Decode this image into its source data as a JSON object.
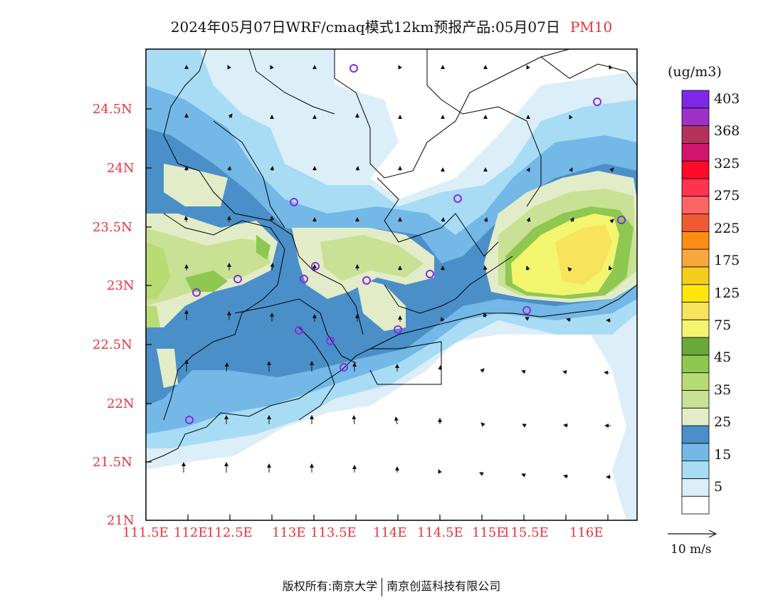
{
  "title": {
    "text": "2024年05月07日WRF/cmaq模式12km预报产品:05月07日",
    "pollutant": "PM10"
  },
  "axes": {
    "lat_labels": [
      "24.5N",
      "24N",
      "23.5N",
      "23N",
      "22.5N",
      "22N",
      "21.5N",
      "21N"
    ],
    "lon_labels": [
      "111.5E",
      "112E",
      "112.5E",
      "113E",
      "113.5E",
      "114E",
      "114.5E",
      "115E",
      "115.5E",
      "116E"
    ],
    "label_color": "#e8323c"
  },
  "colorbar": {
    "unit": "(ug/m3)",
    "colors": [
      "#ffffff",
      "#dceef8",
      "#a8dcf5",
      "#73b8e6",
      "#4a8fc8",
      "#e3ecc8",
      "#c9e194",
      "#b8dc74",
      "#8ec850",
      "#6aa83c",
      "#f3f56e",
      "#f7e35c",
      "#ffe60a",
      "#f5ce1c",
      "#f7a83c",
      "#ff8c14",
      "#ef5a32",
      "#ff6464",
      "#ff3250",
      "#ff0a28",
      "#d2146e",
      "#b4325a",
      "#9e32c8",
      "#7e28e6"
    ],
    "labels": [
      "5",
      "15",
      "25",
      "35",
      "45",
      "75",
      "125",
      "175",
      "225",
      "275",
      "325",
      "368",
      "403"
    ]
  },
  "wind_key": {
    "label": "10 m/s"
  },
  "footer": {
    "left": "版权所有:南京大学",
    "right": "南京创蓝科技有限公司"
  }
}
